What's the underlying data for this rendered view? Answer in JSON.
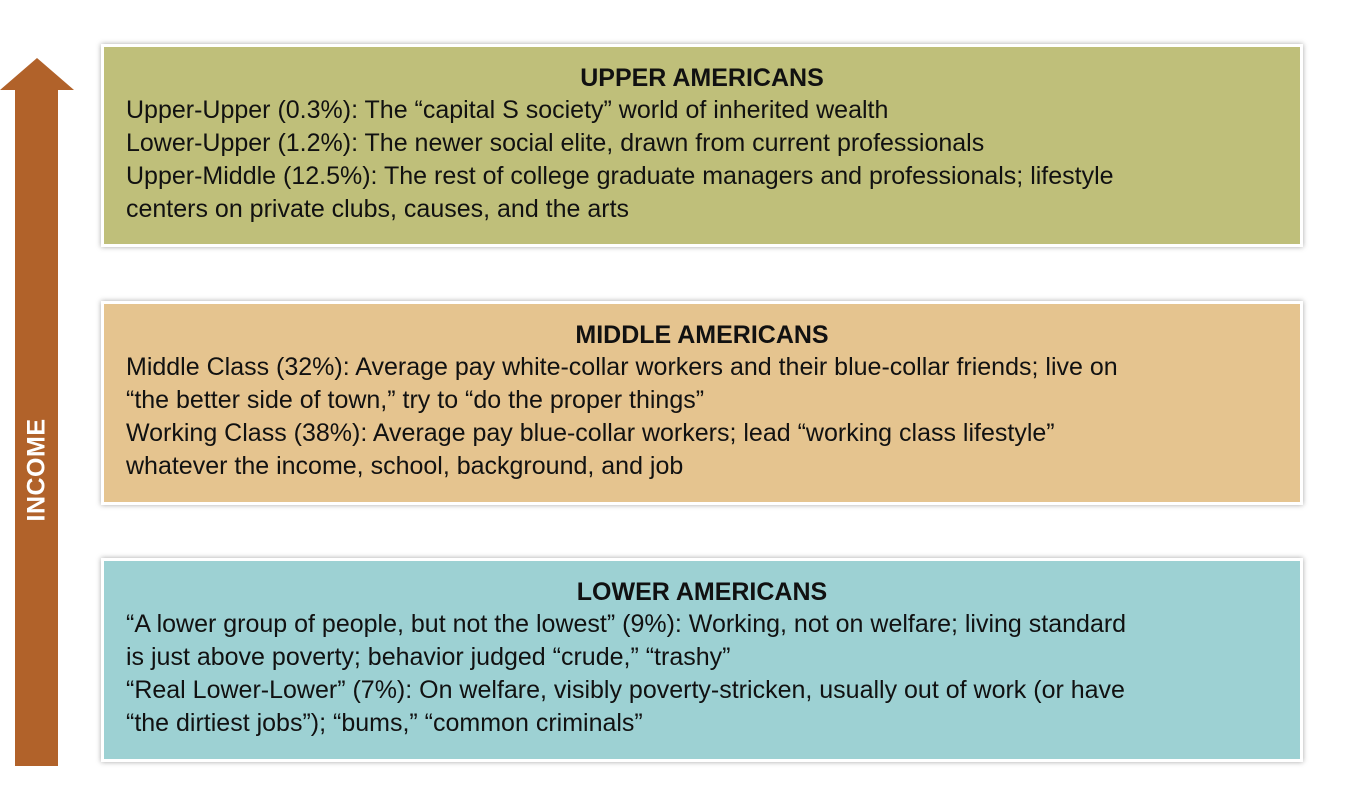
{
  "axis": {
    "label": "INCOME",
    "color": "#b1622a"
  },
  "tiers": [
    {
      "title": "UPPER AMERICANS",
      "color": "#bfbf7a",
      "lines": [
        "Upper-Upper (0.3%): The “capital S society” world of inherited wealth",
        "Lower-Upper (1.2%): The newer social elite, drawn from current professionals",
        "Upper-Middle (12.5%): The rest of college graduate managers and professionals; lifestyle",
        "centers on private clubs, causes, and the arts"
      ]
    },
    {
      "title": "MIDDLE AMERICANS",
      "color": "#e5c48f",
      "lines": [
        "Middle Class (32%): Average pay white-collar workers and their blue-collar friends; live on",
        "“the better side of town,” try to “do the proper things”",
        "Working Class (38%): Average pay blue-collar workers; lead “working class lifestyle”",
        "whatever the income, school, background, and job"
      ]
    },
    {
      "title": "LOWER AMERICANS",
      "color": "#9dd1d3",
      "lines": [
        "“A lower group of people, but not the lowest” (9%): Working, not on welfare; living standard",
        "is just above poverty; behavior judged “crude,” “trashy”",
        "“Real Lower-Lower” (7%): On welfare, visibly poverty-stricken, usually out of work (or have",
        "“the dirtiest jobs”); “bums,” “common criminals”"
      ]
    }
  ]
}
